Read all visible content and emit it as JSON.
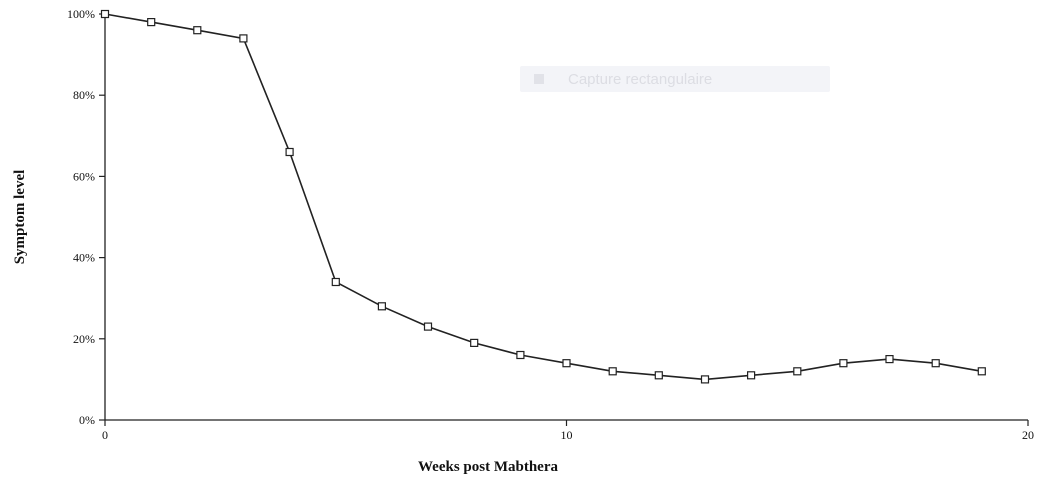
{
  "chart_data": {
    "type": "line",
    "title": "",
    "xlabel": "Weeks post Mabthera",
    "ylabel": "Symptom level",
    "xlim": [
      0,
      20
    ],
    "ylim": [
      0,
      100
    ],
    "x_ticks": [
      0,
      10,
      20
    ],
    "x_tick_labels": [
      "0",
      "10",
      "20"
    ],
    "y_ticks": [
      0,
      20,
      40,
      60,
      80,
      100
    ],
    "y_tick_labels": [
      "0%",
      "20%",
      "40%",
      "60%",
      "80%",
      "100%"
    ],
    "grid": false,
    "legend": "none",
    "marker": "square",
    "line_color": "#222222",
    "series": [
      {
        "x": [
          0,
          1,
          2,
          3,
          4,
          5,
          6,
          7,
          8,
          9,
          10,
          11,
          12,
          13,
          14,
          15,
          16,
          17,
          18,
          19
        ],
        "values": [
          100,
          98,
          96,
          94,
          66,
          34,
          28,
          23,
          19,
          16,
          14,
          12,
          11,
          10,
          11,
          12,
          14,
          15,
          14,
          12
        ]
      }
    ]
  },
  "overlay": {
    "watermark_label": "Capture rectangulaire",
    "icon": "scissors-icon"
  }
}
